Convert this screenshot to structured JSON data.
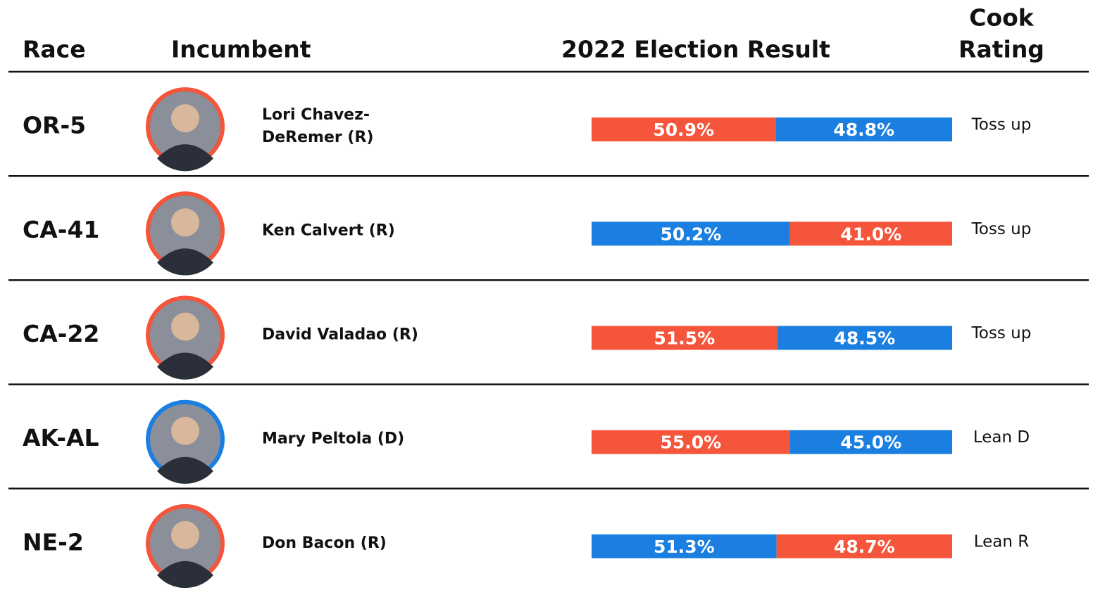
{
  "header": {
    "race": "Race",
    "incumbent": "Incumbent",
    "result": "2022 Election Result",
    "rating": [
      "Cook",
      "Rating"
    ]
  },
  "rows": [
    {
      "race": "OR-5",
      "incumbent": [
        "Lori Chavez-",
        "DeRemer (R)"
      ],
      "ring_color": "#f4553b",
      "result": {
        "values": [
          50.9,
          48.8
        ],
        "value_labels": [
          "50.9%",
          "48.8%"
        ],
        "colors": [
          "#f4553b",
          "#1a7fe0"
        ]
      },
      "rating": "Toss up"
    },
    {
      "race": "CA-41",
      "incumbent": [
        "Ken Calvert (R)"
      ],
      "ring_color": "#f4553b",
      "result": {
        "values": [
          50.2,
          41.0
        ],
        "value_labels": [
          "50.2%",
          "41.0%"
        ],
        "colors": [
          "#1a7fe0",
          "#f4553b"
        ]
      },
      "rating": "Toss up"
    },
    {
      "race": "CA-22",
      "incumbent": [
        "David Valadao (R)"
      ],
      "ring_color": "#f4553b",
      "result": {
        "values": [
          51.5,
          48.5
        ],
        "value_labels": [
          "51.5%",
          "48.5%"
        ],
        "colors": [
          "#f4553b",
          "#1a7fe0"
        ]
      },
      "rating": "Toss up"
    },
    {
      "race": "AK-AL",
      "incumbent": [
        "Mary Peltola (D)"
      ],
      "ring_color": "#1a7fe0",
      "result": {
        "values": [
          55.0,
          45.0
        ],
        "value_labels": [
          "55.0%",
          "45.0%"
        ],
        "colors": [
          "#f4553b",
          "#1a7fe0"
        ]
      },
      "rating": "Lean D"
    },
    {
      "race": "NE-2",
      "incumbent": [
        "Don Bacon (R)"
      ],
      "ring_color": "#f4553b",
      "result": {
        "values": [
          51.3,
          48.7
        ],
        "value_labels": [
          "51.3%",
          "48.7%"
        ],
        "colors": [
          "#1a7fe0",
          "#f4553b"
        ]
      },
      "rating": "Lean R"
    }
  ]
}
